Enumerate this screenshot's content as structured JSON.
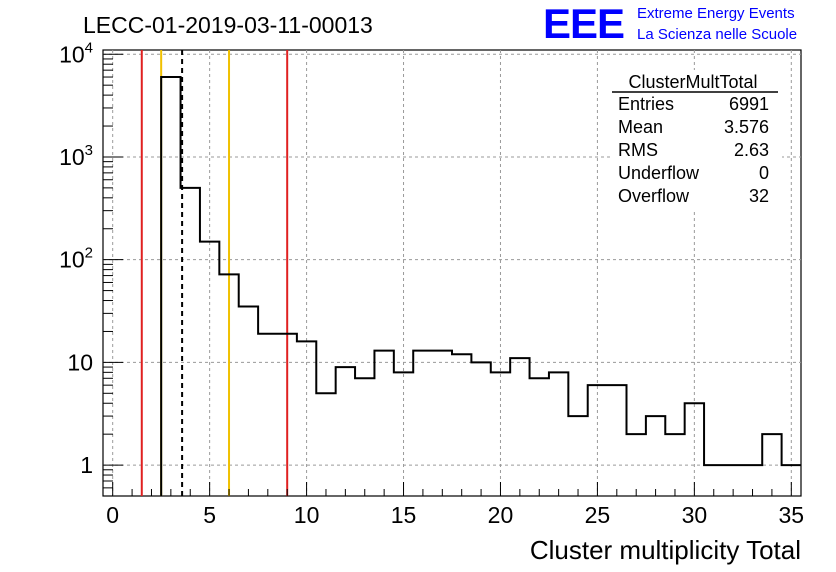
{
  "title": "LECC-01-2019-03-11-00013",
  "logo": {
    "mark": "EEE",
    "line1": "Extreme Energy Events",
    "line2": "La Scienza nelle Scuole",
    "color": "#0000ff"
  },
  "stats_box": {
    "title": "ClusterMultTotal",
    "rows": [
      {
        "label": "Entries",
        "value": "6991"
      },
      {
        "label": "Mean",
        "value": "3.576"
      },
      {
        "label": "RMS",
        "value": "2.63"
      },
      {
        "label": "Underflow",
        "value": "0"
      },
      {
        "label": "Overflow",
        "value": "32"
      }
    ]
  },
  "chart_data": {
    "type": "histogram",
    "title": "LECC-01-2019-03-11-00013",
    "xlabel": "Cluster multiplicity Total",
    "ylabel": "",
    "xlim": [
      -0.5,
      35.5
    ],
    "ylim": [
      0.5,
      11000
    ],
    "yscale": "log",
    "grid": true,
    "x_ticks": [
      0,
      5,
      10,
      15,
      20,
      25,
      30,
      35
    ],
    "x_tick_labels": [
      "0",
      "5",
      "10",
      "15",
      "20",
      "25",
      "30",
      "35"
    ],
    "y_ticks": [
      1,
      10,
      100,
      1000,
      10000
    ],
    "y_tick_labels": [
      "1",
      "10",
      "10^2",
      "10^3",
      "10^4"
    ],
    "bin_width": 1,
    "bins": [
      {
        "low": 2.5,
        "high": 3.5,
        "count": 6000
      },
      {
        "low": 3.5,
        "high": 4.5,
        "count": 500
      },
      {
        "low": 4.5,
        "high": 5.5,
        "count": 150
      },
      {
        "low": 5.5,
        "high": 6.5,
        "count": 72
      },
      {
        "low": 6.5,
        "high": 7.5,
        "count": 35
      },
      {
        "low": 7.5,
        "high": 8.5,
        "count": 19
      },
      {
        "low": 8.5,
        "high": 9.5,
        "count": 19
      },
      {
        "low": 9.5,
        "high": 10.5,
        "count": 16
      },
      {
        "low": 10.5,
        "high": 11.5,
        "count": 5
      },
      {
        "low": 11.5,
        "high": 12.5,
        "count": 9
      },
      {
        "low": 12.5,
        "high": 13.5,
        "count": 7
      },
      {
        "low": 13.5,
        "high": 14.5,
        "count": 13
      },
      {
        "low": 14.5,
        "high": 15.5,
        "count": 8
      },
      {
        "low": 15.5,
        "high": 16.5,
        "count": 13
      },
      {
        "low": 16.5,
        "high": 17.5,
        "count": 13
      },
      {
        "low": 17.5,
        "high": 18.5,
        "count": 12
      },
      {
        "low": 18.5,
        "high": 19.5,
        "count": 10
      },
      {
        "low": 19.5,
        "high": 20.5,
        "count": 8
      },
      {
        "low": 20.5,
        "high": 21.5,
        "count": 11
      },
      {
        "low": 21.5,
        "high": 22.5,
        "count": 7
      },
      {
        "low": 22.5,
        "high": 23.5,
        "count": 8
      },
      {
        "low": 23.5,
        "high": 24.5,
        "count": 3
      },
      {
        "low": 24.5,
        "high": 25.5,
        "count": 6
      },
      {
        "low": 25.5,
        "high": 26.5,
        "count": 6
      },
      {
        "low": 26.5,
        "high": 27.5,
        "count": 2
      },
      {
        "low": 27.5,
        "high": 28.5,
        "count": 3
      },
      {
        "low": 28.5,
        "high": 29.5,
        "count": 2
      },
      {
        "low": 29.5,
        "high": 30.5,
        "count": 4
      },
      {
        "low": 30.5,
        "high": 31.5,
        "count": 1
      },
      {
        "low": 31.5,
        "high": 32.5,
        "count": 1
      },
      {
        "low": 32.5,
        "high": 33.5,
        "count": 1
      },
      {
        "low": 33.5,
        "high": 34.5,
        "count": 2
      },
      {
        "low": 34.5,
        "high": 35.5,
        "count": 1
      }
    ],
    "reference_lines": [
      {
        "x": 1.5,
        "color": "#e02020",
        "style": "solid"
      },
      {
        "x": 9.0,
        "color": "#e02020",
        "style": "solid"
      },
      {
        "x": 2.5,
        "color": "#f0c000",
        "style": "solid"
      },
      {
        "x": 6.0,
        "color": "#f0c000",
        "style": "solid"
      },
      {
        "x": 3.58,
        "color": "#000000",
        "style": "dashed"
      }
    ]
  }
}
